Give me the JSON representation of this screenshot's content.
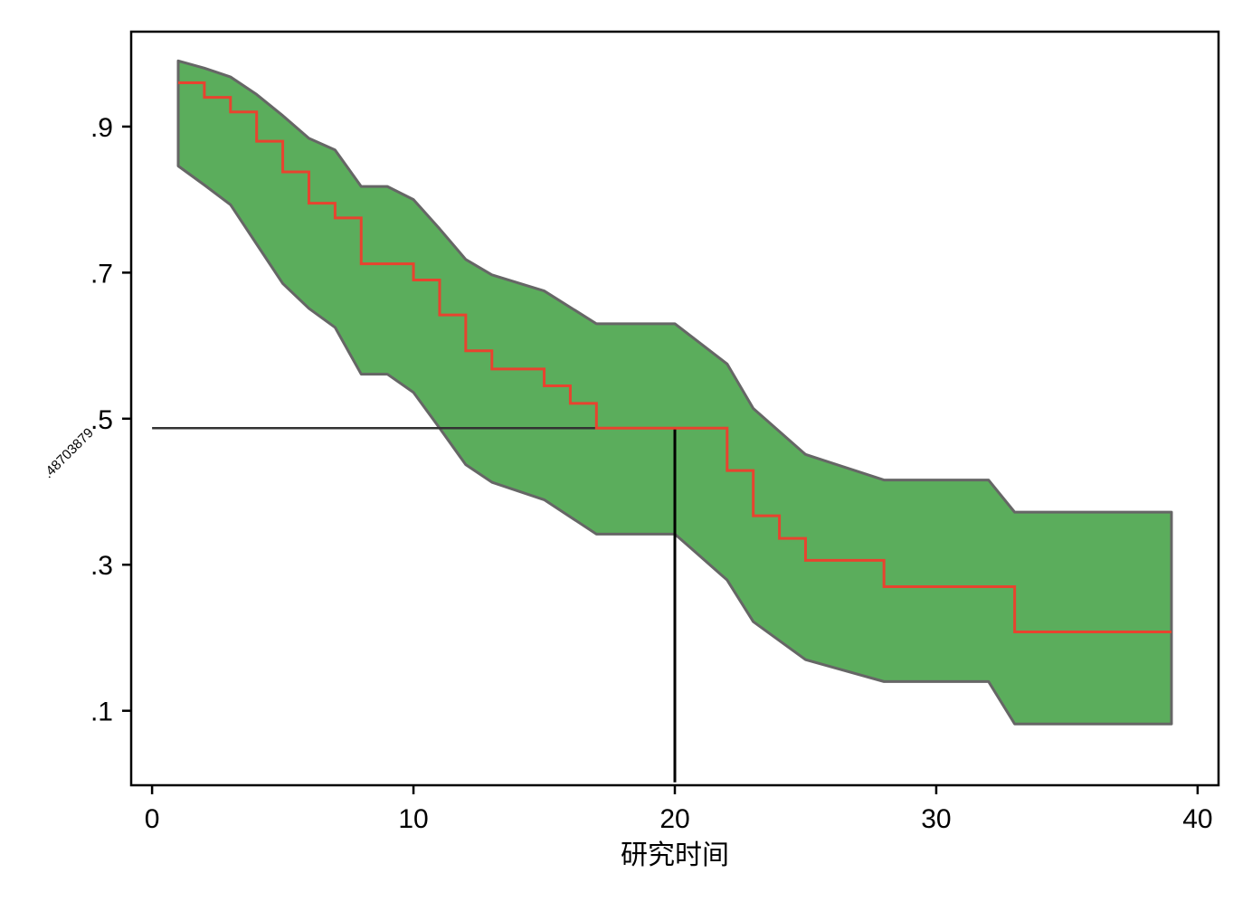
{
  "chart_data": {
    "type": "line",
    "title": "",
    "xlabel": "研究时间",
    "ylabel": "",
    "xlim": [
      -0.8,
      40.8
    ],
    "ylim": [
      -0.002,
      1.03
    ],
    "grid": false,
    "legend": "none",
    "x_ticks": [
      0,
      10,
      20,
      30,
      40
    ],
    "x_tick_labels": [
      "0",
      "10",
      "20",
      "30",
      "40"
    ],
    "y_ticks": [
      0.1,
      0.3,
      0.5,
      0.7,
      0.9
    ],
    "y_tick_labels": [
      ".1",
      ".3",
      ".5",
      ".7",
      ".9"
    ],
    "series": [
      {
        "role": "survival-estimate",
        "color": "#e8432f",
        "style": "step",
        "x": [
          1,
          2,
          3,
          4,
          5,
          6,
          7,
          8,
          10,
          11,
          12,
          13,
          15,
          16,
          17,
          20,
          22,
          23,
          24,
          25,
          28,
          33,
          39
        ],
        "y": [
          0.96,
          0.94,
          0.92,
          0.88,
          0.838,
          0.795,
          0.775,
          0.712,
          0.69,
          0.642,
          0.593,
          0.568,
          0.545,
          0.521,
          0.487,
          0.487,
          0.429,
          0.367,
          0.336,
          0.306,
          0.27,
          0.208,
          0.208
        ]
      },
      {
        "role": "confidence-band",
        "color": "#5bad5c",
        "edge_color": "#666666",
        "x": [
          1,
          2,
          3,
          4,
          5,
          6,
          7,
          8,
          9,
          10,
          11,
          12,
          13,
          15,
          17,
          20,
          22,
          23,
          25,
          28,
          32,
          33,
          39
        ],
        "upper": [
          0.99,
          0.98,
          0.968,
          0.944,
          0.915,
          0.884,
          0.868,
          0.818,
          0.818,
          0.8,
          0.76,
          0.718,
          0.697,
          0.675,
          0.63,
          0.63,
          0.575,
          0.514,
          0.451,
          0.416,
          0.416,
          0.372,
          0.372
        ],
        "lower": [
          0.846,
          0.82,
          0.793,
          0.739,
          0.685,
          0.651,
          0.625,
          0.561,
          0.561,
          0.536,
          0.487,
          0.437,
          0.413,
          0.389,
          0.342,
          0.342,
          0.279,
          0.222,
          0.17,
          0.14,
          0.14,
          0.082,
          0.082
        ]
      }
    ],
    "reference_lines": {
      "horizontal_y": 0.48703879,
      "horizontal_from_x": 0,
      "horizontal_to_x": 20,
      "vertical_x": 20,
      "vertical_from_y": 0.002,
      "vertical_to_y": 0.48703879,
      "color": "#333333"
    },
    "annotations": [
      {
        "text": ".48703879",
        "y": 0.48703879
      }
    ]
  }
}
